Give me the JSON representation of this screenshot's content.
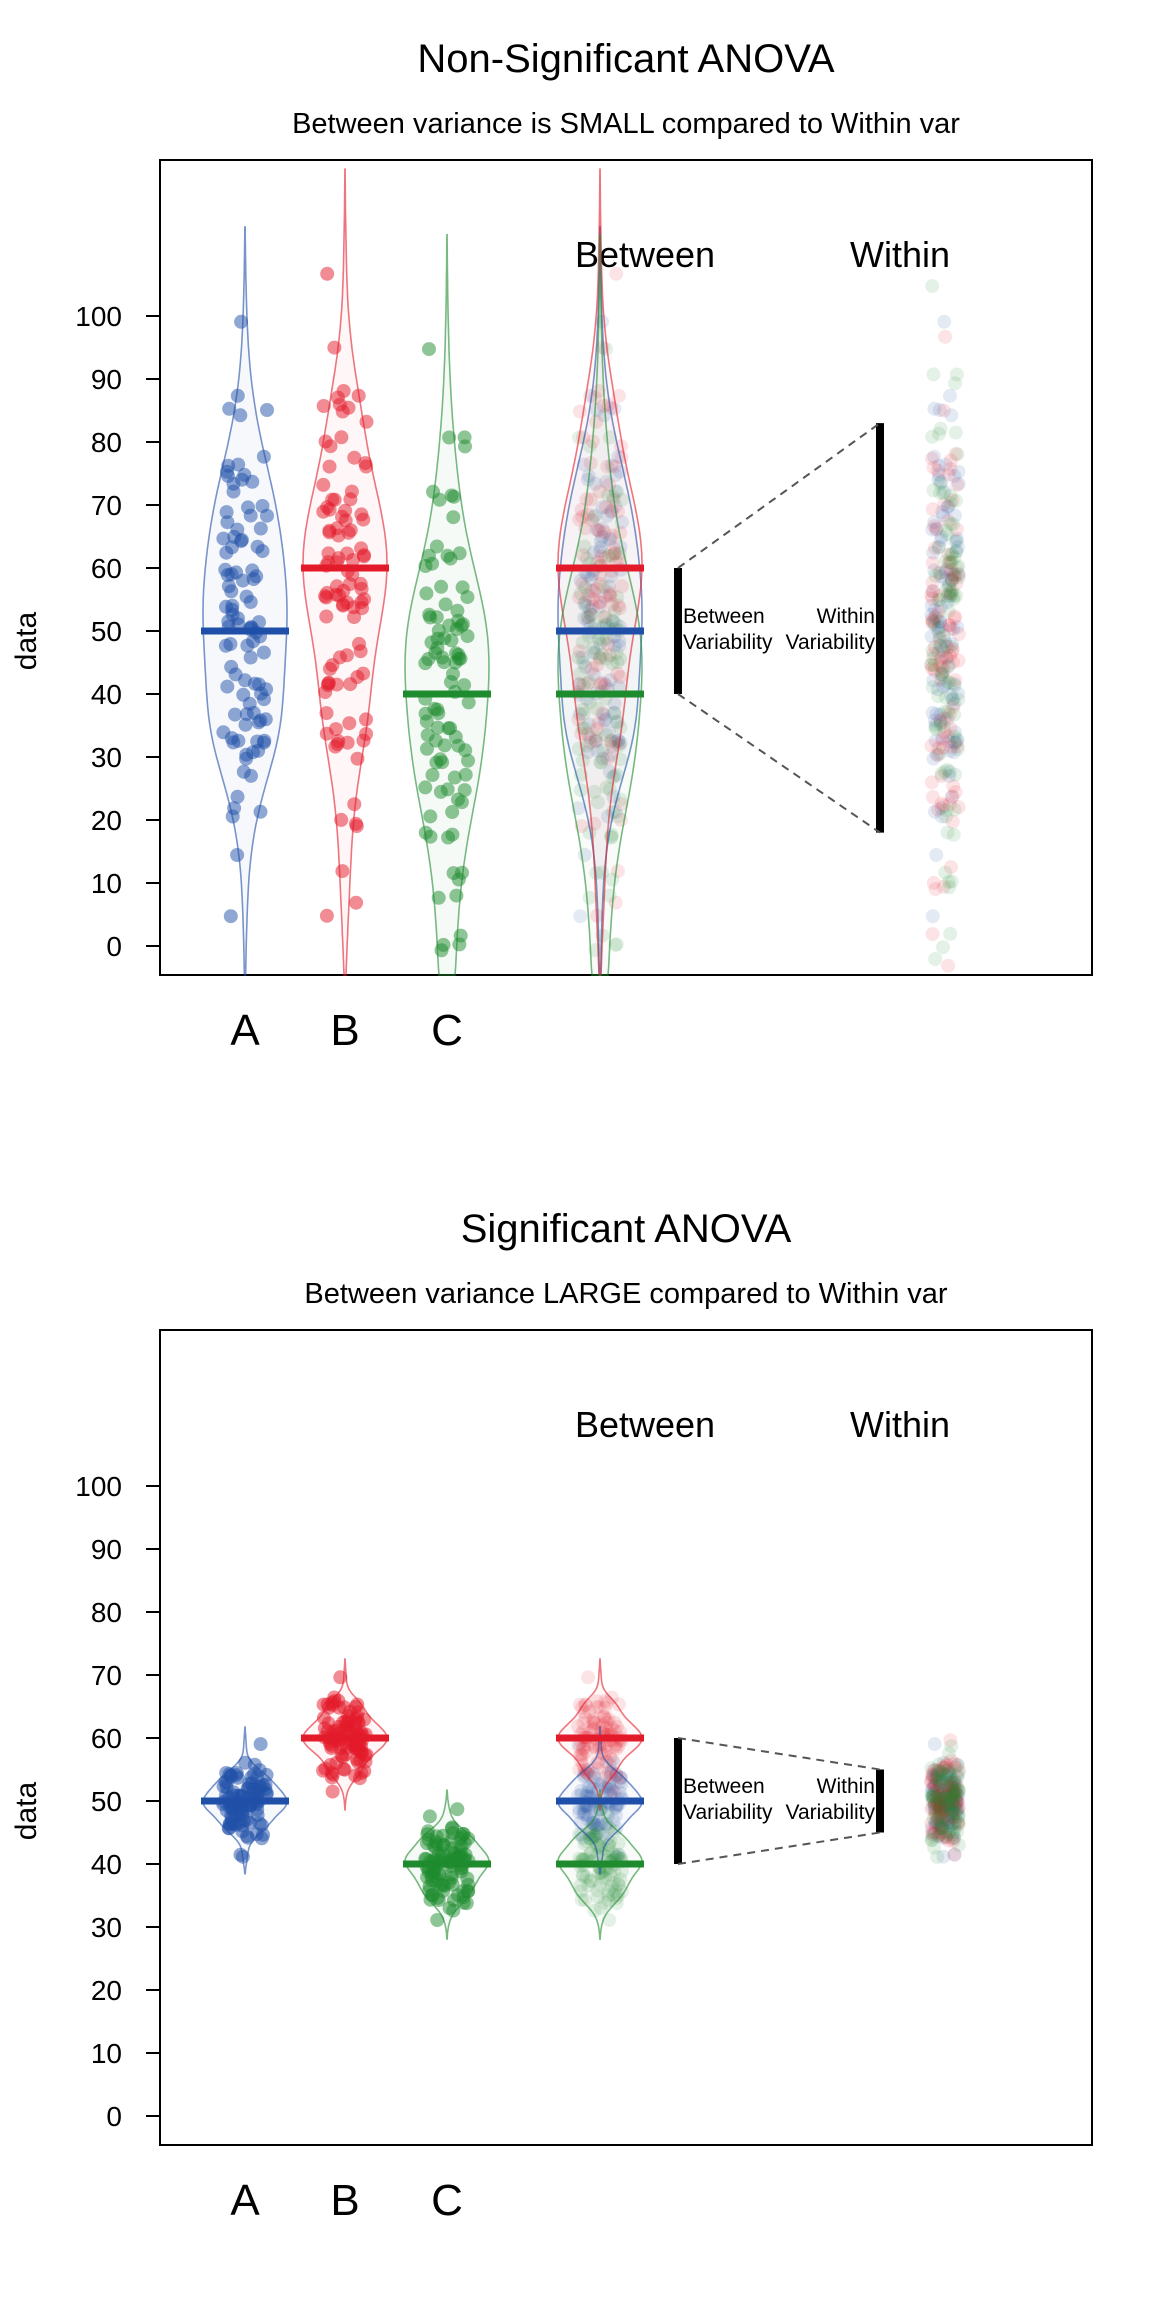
{
  "colors": {
    "A": "#1f4fa8",
    "B": "#e31a2a",
    "C": "#1e8c2e",
    "frame": "#000000",
    "guide": "#555555"
  },
  "chart_data": [
    {
      "type": "scatter",
      "title": "Non-Significant ANOVA",
      "subtitle": "Between variance is SMALL compared to Within var",
      "ylabel": "data",
      "ylim": [
        -5,
        125
      ],
      "yticks": [
        0,
        10,
        20,
        30,
        40,
        50,
        60,
        70,
        80,
        90,
        100
      ],
      "categories": [
        "A",
        "B",
        "C"
      ],
      "column_headers": [
        "Between",
        "Within"
      ],
      "annotations": {
        "between": "Between Variability",
        "within": "Within Variability"
      },
      "series": [
        {
          "name": "A",
          "mean": 50,
          "sd": 20
        },
        {
          "name": "B",
          "mean": 60,
          "sd": 20
        },
        {
          "name": "C",
          "mean": 40,
          "sd": 20
        }
      ],
      "between_range": [
        40,
        60
      ],
      "within_range": [
        18,
        83
      ],
      "grid": false
    },
    {
      "type": "scatter",
      "title": "Significant ANOVA",
      "subtitle": "Between variance LARGE compared to Within var",
      "ylabel": "data",
      "ylim": [
        -5,
        125
      ],
      "yticks": [
        0,
        10,
        20,
        30,
        40,
        50,
        60,
        70,
        80,
        90,
        100
      ],
      "categories": [
        "A",
        "B",
        "C"
      ],
      "column_headers": [
        "Between",
        "Within"
      ],
      "annotations": {
        "between": "Between Variability",
        "within": "Within Variability"
      },
      "series": [
        {
          "name": "A",
          "mean": 50,
          "sd": 3.5
        },
        {
          "name": "B",
          "mean": 60,
          "sd": 3.5
        },
        {
          "name": "C",
          "mean": 40,
          "sd": 3.5
        }
      ],
      "between_range": [
        40,
        60
      ],
      "within_range": [
        45,
        55
      ],
      "grid": false
    }
  ]
}
